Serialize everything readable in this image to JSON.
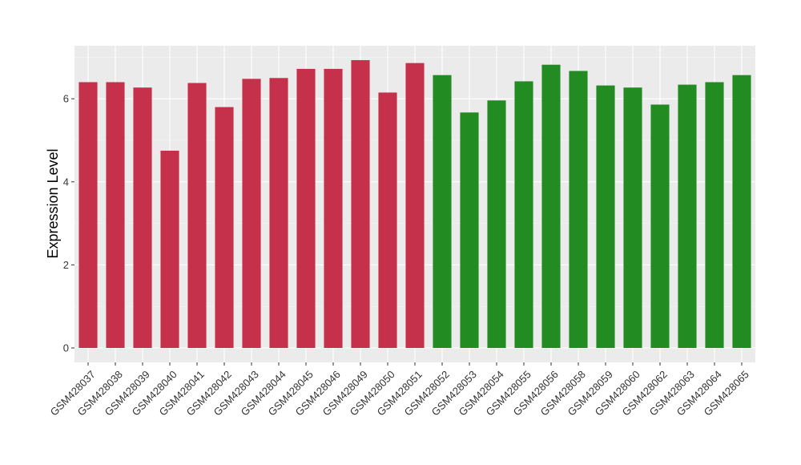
{
  "chart_data": {
    "type": "bar",
    "ylabel": "Expression Level",
    "xlabel": "",
    "ylim": [
      0,
      7.2
    ],
    "yticks": [
      0,
      2,
      4,
      6
    ],
    "grid": true,
    "colors": {
      "group_a": "#C5314A",
      "group_b": "#228B22",
      "panel": "#EBEBEB",
      "grid": "#FFFFFF"
    },
    "categories": [
      "GSM428037",
      "GSM428038",
      "GSM428039",
      "GSM428040",
      "GSM428041",
      "GSM428042",
      "GSM428043",
      "GSM428044",
      "GSM428045",
      "GSM428046",
      "GSM428049",
      "GSM428050",
      "GSM428051",
      "GSM428052",
      "GSM428053",
      "GSM428054",
      "GSM428055",
      "GSM428056",
      "GSM428058",
      "GSM428059",
      "GSM428060",
      "GSM428062",
      "GSM428063",
      "GSM428064",
      "GSM428065"
    ],
    "values": [
      6.4,
      6.4,
      6.27,
      4.75,
      6.38,
      5.8,
      6.48,
      6.5,
      6.72,
      6.72,
      6.93,
      6.15,
      6.86,
      6.57,
      5.67,
      5.96,
      6.42,
      6.82,
      6.67,
      6.32,
      6.27,
      5.86,
      6.34,
      6.4,
      6.57
    ],
    "groups": [
      "a",
      "a",
      "a",
      "a",
      "a",
      "a",
      "a",
      "a",
      "a",
      "a",
      "a",
      "a",
      "a",
      "b",
      "b",
      "b",
      "b",
      "b",
      "b",
      "b",
      "b",
      "b",
      "b",
      "b",
      "b"
    ]
  }
}
